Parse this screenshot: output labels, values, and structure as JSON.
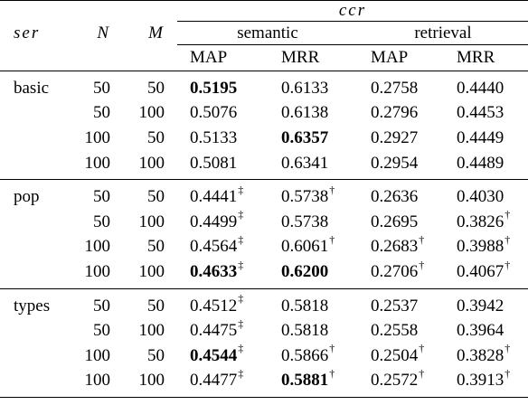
{
  "header": {
    "ser": "ser",
    "n": "N",
    "m": "M",
    "ccr": "ccr",
    "semantic": "semantic",
    "retrieval": "retrieval",
    "map1": "MAP",
    "mrr1": "MRR",
    "map2": "MAP",
    "mrr2": "MRR"
  },
  "groups": [
    {
      "name": "basic",
      "rows": [
        {
          "n": "50",
          "m": "50",
          "cells": [
            {
              "v": "0.5195",
              "b": true,
              "s": ""
            },
            {
              "v": "0.6133",
              "b": false,
              "s": ""
            },
            {
              "v": "0.2758",
              "b": false,
              "s": ""
            },
            {
              "v": "0.4440",
              "b": false,
              "s": ""
            }
          ]
        },
        {
          "n": "50",
          "m": "100",
          "cells": [
            {
              "v": "0.5076",
              "b": false,
              "s": ""
            },
            {
              "v": "0.6138",
              "b": false,
              "s": ""
            },
            {
              "v": "0.2796",
              "b": false,
              "s": ""
            },
            {
              "v": "0.4453",
              "b": false,
              "s": ""
            }
          ]
        },
        {
          "n": "100",
          "m": "50",
          "cells": [
            {
              "v": "0.5133",
              "b": false,
              "s": ""
            },
            {
              "v": "0.6357",
              "b": true,
              "s": ""
            },
            {
              "v": "0.2927",
              "b": false,
              "s": ""
            },
            {
              "v": "0.4449",
              "b": false,
              "s": ""
            }
          ]
        },
        {
          "n": "100",
          "m": "100",
          "cells": [
            {
              "v": "0.5081",
              "b": false,
              "s": ""
            },
            {
              "v": "0.6341",
              "b": false,
              "s": ""
            },
            {
              "v": "0.2954",
              "b": false,
              "s": ""
            },
            {
              "v": "0.4489",
              "b": false,
              "s": ""
            }
          ]
        }
      ]
    },
    {
      "name": "pop",
      "rows": [
        {
          "n": "50",
          "m": "50",
          "cells": [
            {
              "v": "0.4441",
              "b": false,
              "s": "‡"
            },
            {
              "v": "0.5738",
              "b": false,
              "s": "†"
            },
            {
              "v": "0.2636",
              "b": false,
              "s": ""
            },
            {
              "v": "0.4030",
              "b": false,
              "s": ""
            }
          ]
        },
        {
          "n": "50",
          "m": "100",
          "cells": [
            {
              "v": "0.4499",
              "b": false,
              "s": "‡"
            },
            {
              "v": "0.5738",
              "b": false,
              "s": ""
            },
            {
              "v": "0.2695",
              "b": false,
              "s": ""
            },
            {
              "v": "0.3826",
              "b": false,
              "s": "†"
            }
          ]
        },
        {
          "n": "100",
          "m": "50",
          "cells": [
            {
              "v": "0.4564",
              "b": false,
              "s": "‡"
            },
            {
              "v": "0.6061",
              "b": false,
              "s": "†"
            },
            {
              "v": "0.2683",
              "b": false,
              "s": "†"
            },
            {
              "v": "0.3988",
              "b": false,
              "s": "†"
            }
          ]
        },
        {
          "n": "100",
          "m": "100",
          "cells": [
            {
              "v": "0.4633",
              "b": true,
              "s": "‡"
            },
            {
              "v": "0.6200",
              "b": true,
              "s": ""
            },
            {
              "v": "0.2706",
              "b": false,
              "s": "†"
            },
            {
              "v": "0.4067",
              "b": false,
              "s": "†"
            }
          ]
        }
      ]
    },
    {
      "name": "types",
      "rows": [
        {
          "n": "50",
          "m": "50",
          "cells": [
            {
              "v": "0.4512",
              "b": false,
              "s": "‡"
            },
            {
              "v": "0.5818",
              "b": false,
              "s": ""
            },
            {
              "v": "0.2537",
              "b": false,
              "s": ""
            },
            {
              "v": "0.3942",
              "b": false,
              "s": ""
            }
          ]
        },
        {
          "n": "50",
          "m": "100",
          "cells": [
            {
              "v": "0.4475",
              "b": false,
              "s": "‡"
            },
            {
              "v": "0.5818",
              "b": false,
              "s": ""
            },
            {
              "v": "0.2558",
              "b": false,
              "s": ""
            },
            {
              "v": "0.3964",
              "b": false,
              "s": ""
            }
          ]
        },
        {
          "n": "100",
          "m": "50",
          "cells": [
            {
              "v": "0.4544",
              "b": true,
              "s": "‡"
            },
            {
              "v": "0.5866",
              "b": false,
              "s": "†"
            },
            {
              "v": "0.2504",
              "b": false,
              "s": "†"
            },
            {
              "v": "0.3828",
              "b": false,
              "s": "†"
            }
          ]
        },
        {
          "n": "100",
          "m": "100",
          "cells": [
            {
              "v": "0.4477",
              "b": false,
              "s": "‡"
            },
            {
              "v": "0.5881",
              "b": true,
              "s": "†"
            },
            {
              "v": "0.2572",
              "b": false,
              "s": "†"
            },
            {
              "v": "0.3913",
              "b": false,
              "s": "†"
            }
          ]
        }
      ]
    }
  ]
}
